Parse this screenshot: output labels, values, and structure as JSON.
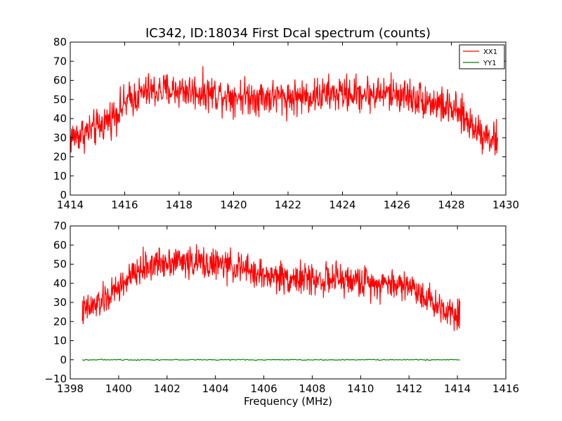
{
  "chart_data": [
    {
      "type": "line",
      "title": "IC342, ID:18034 First Dcal spectrum (counts)",
      "xlabel": "",
      "ylabel": "",
      "xlim": [
        1414,
        1430
      ],
      "ylim": [
        0,
        80
      ],
      "xticks": [
        "1414",
        "1416",
        "1418",
        "1420",
        "1422",
        "1424",
        "1426",
        "1428",
        "1430"
      ],
      "yticks": [
        "0",
        "10",
        "20",
        "30",
        "40",
        "50",
        "60",
        "70",
        "80"
      ],
      "grid": false,
      "legend_position": "top-right",
      "legend": [
        "XX1",
        "YY1"
      ],
      "series": [
        {
          "name": "XX1",
          "color": "#ff0000",
          "x_range": [
            1414.0,
            1429.7
          ],
          "points": 1000,
          "noise_amplitude": 7,
          "envelope": [
            [
              1414.0,
              30
            ],
            [
              1415.0,
              35
            ],
            [
              1415.6,
              42
            ],
            [
              1416.2,
              50
            ],
            [
              1416.8,
              54
            ],
            [
              1418.0,
              55
            ],
            [
              1420.0,
              52
            ],
            [
              1422.0,
              51
            ],
            [
              1424.0,
              53
            ],
            [
              1425.0,
              53
            ],
            [
              1426.0,
              53
            ],
            [
              1427.0,
              50
            ],
            [
              1428.0,
              45
            ],
            [
              1428.5,
              40
            ],
            [
              1429.0,
              34
            ],
            [
              1429.7,
              28
            ]
          ]
        },
        {
          "name": "YY1",
          "color": "#008000",
          "points": 0
        }
      ]
    },
    {
      "type": "line",
      "title": "",
      "xlabel": "Frequency (MHz)",
      "ylabel": "",
      "xlim": [
        1398,
        1416
      ],
      "ylim": [
        -10,
        70
      ],
      "xticks": [
        "1398",
        "1400",
        "1402",
        "1404",
        "1406",
        "1408",
        "1410",
        "1412",
        "1414",
        "1416"
      ],
      "yticks": [
        "−10",
        "0",
        "10",
        "20",
        "30",
        "40",
        "50",
        "60",
        "70"
      ],
      "grid": false,
      "series": [
        {
          "name": "XX1",
          "color": "#ff0000",
          "x_range": [
            1398.5,
            1414.1
          ],
          "points": 1000,
          "noise_amplitude": 6,
          "envelope": [
            [
              1398.5,
              25
            ],
            [
              1399.0,
              28
            ],
            [
              1399.6,
              33
            ],
            [
              1400.2,
              40
            ],
            [
              1401.0,
              48
            ],
            [
              1402.0,
              52
            ],
            [
              1403.0,
              51
            ],
            [
              1404.0,
              50
            ],
            [
              1405.0,
              48
            ],
            [
              1406.0,
              44
            ],
            [
              1407.0,
              43
            ],
            [
              1408.0,
              42
            ],
            [
              1409.0,
              42
            ],
            [
              1410.0,
              41
            ],
            [
              1411.0,
              40
            ],
            [
              1412.0,
              39
            ],
            [
              1412.6,
              34
            ],
            [
              1413.2,
              28
            ],
            [
              1414.1,
              24
            ]
          ]
        },
        {
          "name": "YY1",
          "color": "#008000",
          "x_range": [
            1398.5,
            1414.1
          ],
          "points": 300,
          "noise_amplitude": 0.2,
          "envelope": [
            [
              1398.5,
              0
            ],
            [
              1414.1,
              0
            ]
          ]
        }
      ]
    }
  ]
}
